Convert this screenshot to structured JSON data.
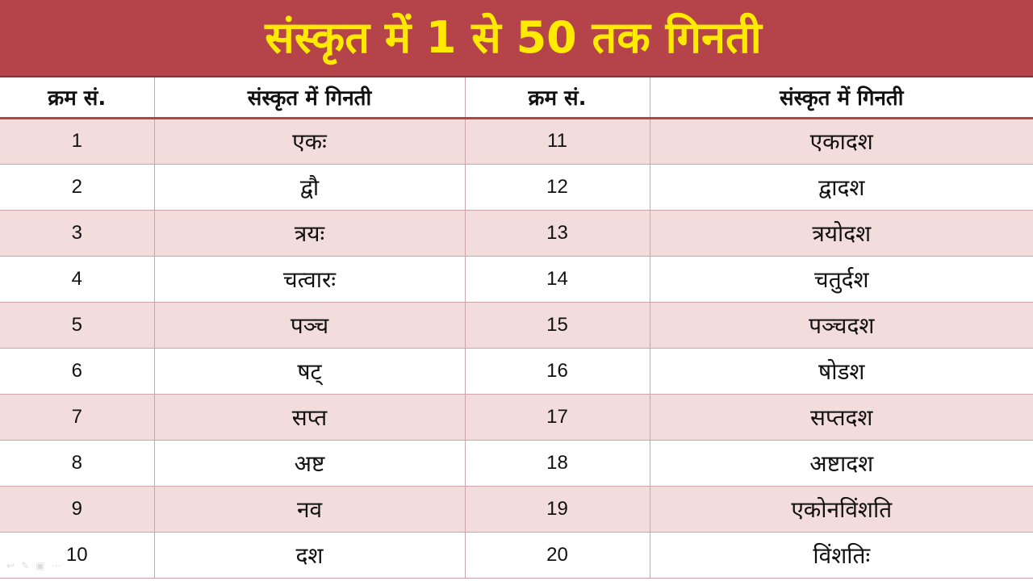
{
  "title": "संस्कृत में 1 से 50 तक गिनती",
  "headers": [
    "क्रम सं.",
    "संस्कृत में गिनती",
    "क्रम सं.",
    "संस्कृत में गिनती"
  ],
  "rows": [
    {
      "n1": "1",
      "w1": "एकः",
      "n2": "11",
      "w2": "एकादश"
    },
    {
      "n1": "2",
      "w1": "द्वौ",
      "n2": "12",
      "w2": "द्वादश"
    },
    {
      "n1": "3",
      "w1": "त्रयः",
      "n2": "13",
      "w2": "त्रयोदश"
    },
    {
      "n1": "4",
      "w1": "चत्वारः",
      "n2": "14",
      "w2": "चतुर्दश"
    },
    {
      "n1": "5",
      "w1": "पञ्च",
      "n2": "15",
      "w2": "पञ्चदश"
    },
    {
      "n1": "6",
      "w1": "षट्",
      "n2": "16",
      "w2": "षोडश"
    },
    {
      "n1": "7",
      "w1": "सप्त",
      "n2": "17",
      "w2": "सप्तदश"
    },
    {
      "n1": "8",
      "w1": "अष्ट",
      "n2": "18",
      "w2": "अष्टादश"
    },
    {
      "n1": "9",
      "w1": "नव",
      "n2": "19",
      "w2": "एकोनविंशति"
    },
    {
      "n1": "10",
      "w1": "दश",
      "n2": "20",
      "w2": "विंशतिः"
    }
  ],
  "colors": {
    "banner": "#b5434a",
    "title_text": "#ffea00",
    "row_shade": "#f2dcdc"
  }
}
